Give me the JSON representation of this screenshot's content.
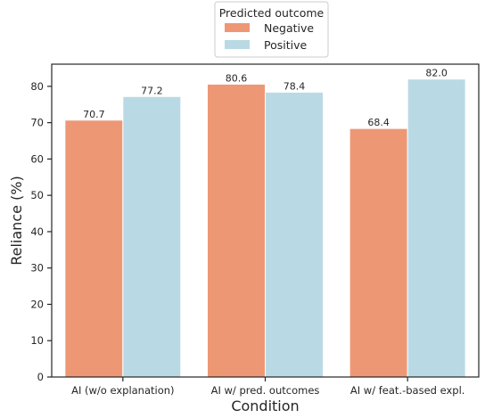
{
  "chart_data": {
    "type": "bar",
    "title": "",
    "xlabel": "Condition",
    "ylabel": "Reliance (%)",
    "categories": [
      "AI (w/o explanation)",
      "AI w/ pred. outcomes",
      "AI w/ feat.-based expl."
    ],
    "series": [
      {
        "name": "Negative",
        "values": [
          70.7,
          80.6,
          68.4
        ],
        "labels": [
          "70.7",
          "80.6",
          "68.4"
        ],
        "color": "#ee9775"
      },
      {
        "name": "Positive",
        "values": [
          77.2,
          78.4,
          82.0
        ],
        "labels": [
          "77.2",
          "78.4",
          "82.0"
        ],
        "color": "#b9dae4"
      }
    ],
    "ylim": [
      0,
      86.1
    ],
    "yticks": [
      0,
      10,
      20,
      30,
      40,
      50,
      60,
      70,
      80
    ],
    "grid": false,
    "legend": {
      "title": "Predicted outcome",
      "placement": "top-center"
    }
  }
}
